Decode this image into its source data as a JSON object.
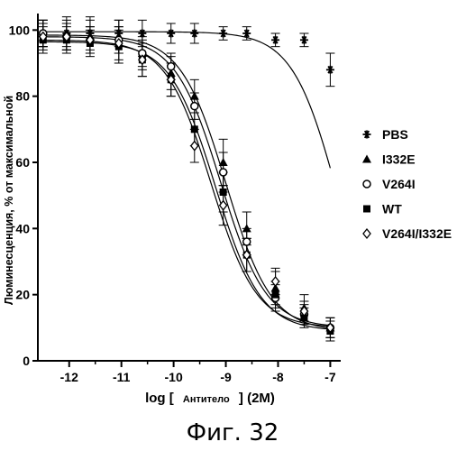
{
  "chart_data": {
    "type": "scatter",
    "xlabel_prefix": "log [",
    "xlabel_inner": "Антитело",
    "xlabel_suffix": "] (2M)",
    "ylabel": "Люминесценция, % от максимальной",
    "xlim": [
      -12.6,
      -6.8
    ],
    "ylim": [
      0,
      105
    ],
    "x_ticks": [
      -12,
      -11,
      -10,
      -9,
      -8,
      -7
    ],
    "x_tick_labels": [
      "-12",
      "-11",
      "-10",
      "-9",
      "-8",
      "-7"
    ],
    "y_ticks": [
      0,
      20,
      40,
      60,
      80,
      100
    ],
    "y_tick_labels": [
      "0",
      "20",
      "40",
      "60",
      "80",
      "100"
    ],
    "legend_position": "right",
    "x": [
      -12.5,
      -12.05,
      -11.6,
      -11.05,
      -10.6,
      -10.05,
      -9.6,
      -9.05,
      -8.6,
      -8.05,
      -7.5,
      -7.0
    ],
    "series": [
      {
        "name": "PBS",
        "marker": "asterisk",
        "values": [
          99,
          99,
          99,
          99,
          99,
          99,
          99,
          99,
          99,
          97,
          97,
          88
        ],
        "errors": [
          4,
          5,
          5,
          4,
          4,
          3,
          3,
          2,
          2,
          2,
          2,
          5
        ],
        "curve": {
          "top": 99.5,
          "bottom": 0,
          "ec50_log": -6.85,
          "hill": 1.0
        }
      },
      {
        "name": "I332E",
        "marker": "triangle",
        "values": [
          99,
          99,
          98,
          98,
          93,
          87,
          80,
          60,
          40,
          22,
          16,
          10
        ],
        "errors": [
          4,
          4,
          5,
          5,
          5,
          5,
          5,
          7,
          5,
          5,
          4,
          3
        ],
        "curve": {
          "top": 98.5,
          "bottom": 9,
          "ec50_log": -9.0,
          "hill": 1.0
        }
      },
      {
        "name": "V264I",
        "marker": "circle",
        "values": [
          99,
          98,
          97,
          97,
          93,
          89,
          77,
          57,
          36,
          19,
          14,
          10
        ],
        "errors": [
          4,
          4,
          4,
          4,
          4,
          4,
          4,
          6,
          4,
          4,
          3,
          3
        ],
        "curve": {
          "top": 98,
          "bottom": 10,
          "ec50_log": -9.1,
          "hill": 1.0
        }
      },
      {
        "name": "WT",
        "marker": "square",
        "values": [
          97,
          97,
          96,
          95,
          91,
          85,
          70,
          51,
          32,
          20,
          13,
          9
        ],
        "errors": [
          4,
          4,
          4,
          5,
          5,
          5,
          5,
          6,
          5,
          4,
          3,
          3
        ],
        "curve": {
          "top": 96.5,
          "bottom": 9,
          "ec50_log": -9.2,
          "hill": 1.0
        }
      },
      {
        "name": "V264I/I332E",
        "marker": "diamond",
        "values": [
          98,
          98,
          97,
          96,
          91,
          85,
          65,
          47,
          32,
          24,
          15,
          10
        ],
        "errors": [
          4,
          4,
          4,
          5,
          5,
          5,
          5,
          6,
          5,
          4,
          3,
          3
        ],
        "curve": {
          "top": 97,
          "bottom": 10,
          "ec50_log": -9.28,
          "hill": 1.0
        }
      }
    ]
  },
  "caption": "Фиг. 32"
}
